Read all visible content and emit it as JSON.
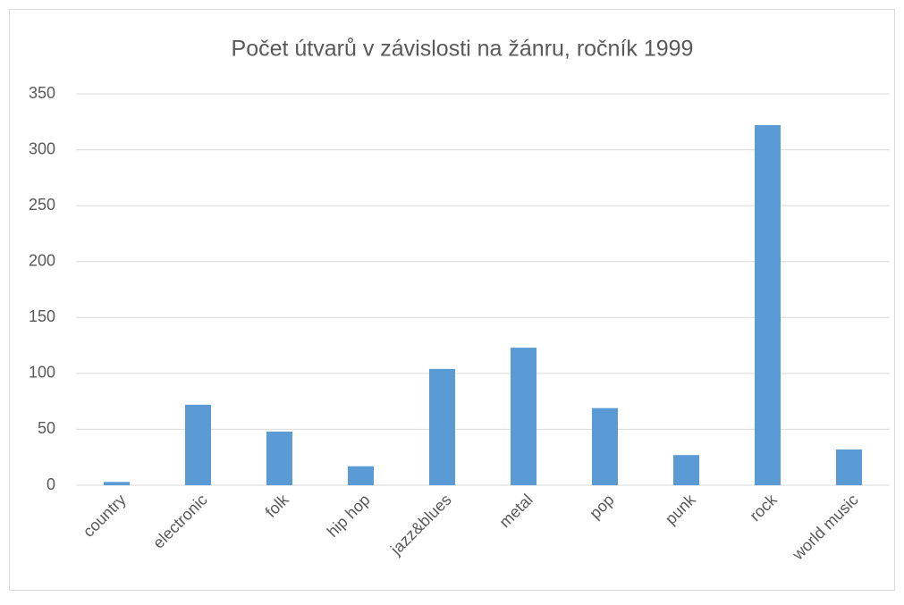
{
  "chart_data": {
    "type": "bar",
    "title": "Počet útvarů v závislosti na žánru, ročník 1999",
    "categories": [
      "country",
      "electronic",
      "folk",
      "hip hop",
      "jazz&blues",
      "metal",
      "pop",
      "punk",
      "rock",
      "world music"
    ],
    "values": [
      3,
      72,
      48,
      17,
      104,
      123,
      69,
      27,
      322,
      32
    ],
    "color": "#5b9bd5",
    "ylim": [
      0,
      350
    ],
    "yticks": [
      0,
      50,
      100,
      150,
      200,
      250,
      300,
      350
    ],
    "grid": true
  }
}
